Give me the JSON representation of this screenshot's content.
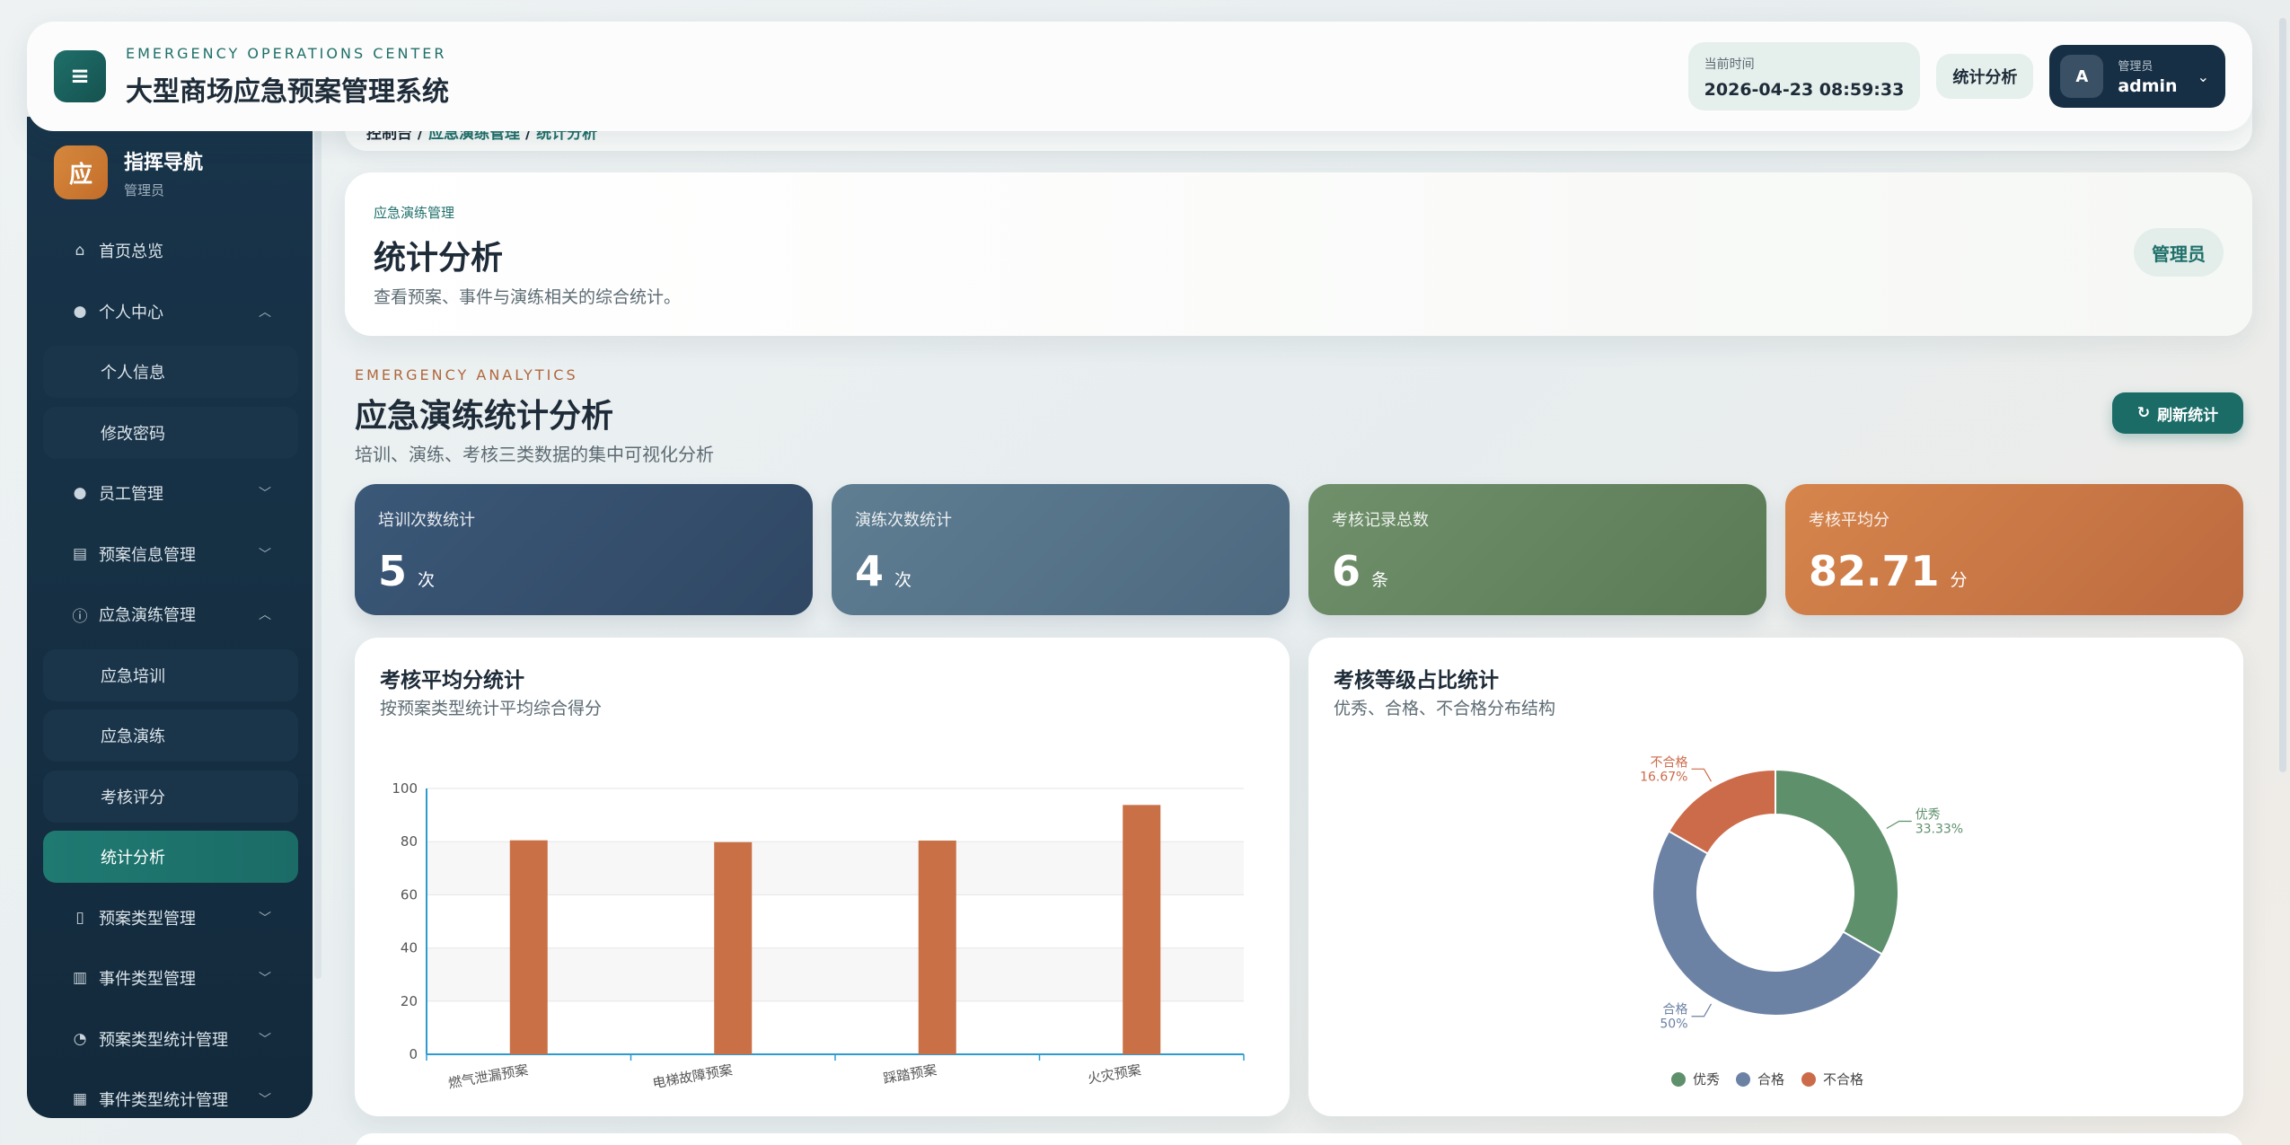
{
  "header": {
    "subtitle": "EMERGENCY OPERATIONS CENTER",
    "title": "大型商场应急预案管理系统",
    "time_label": "当前时间",
    "time_value": "2026-04-23 08:59:33",
    "chip": "统计分析",
    "user_role": "管理员",
    "user_name": "admin",
    "avatar_letter": "A"
  },
  "sidebar": {
    "logo_char": "应",
    "title": "指挥导航",
    "role": "管理员",
    "items": [
      {
        "label": "首页总览",
        "icon": "home-icon",
        "type": "top"
      },
      {
        "label": "个人中心",
        "icon": "user-icon",
        "type": "top",
        "expanded": true
      },
      {
        "label": "个人信息",
        "type": "sub"
      },
      {
        "label": "修改密码",
        "type": "sub"
      },
      {
        "label": "员工管理",
        "icon": "user-icon",
        "type": "top"
      },
      {
        "label": "预案信息管理",
        "icon": "document-icon",
        "type": "top"
      },
      {
        "label": "应急演练管理",
        "icon": "alert-icon",
        "type": "top",
        "expanded": true
      },
      {
        "label": "应急培训",
        "type": "sub"
      },
      {
        "label": "应急演练",
        "type": "sub"
      },
      {
        "label": "考核评分",
        "type": "sub"
      },
      {
        "label": "统计分析",
        "type": "sub",
        "active": true
      },
      {
        "label": "预案类型管理",
        "icon": "bookmark-icon",
        "type": "top"
      },
      {
        "label": "事件类型管理",
        "icon": "book-icon",
        "type": "top"
      },
      {
        "label": "预案类型统计管理",
        "icon": "pie-icon",
        "type": "top"
      },
      {
        "label": "事件类型统计管理",
        "icon": "chart-icon",
        "type": "top"
      }
    ]
  },
  "breadcrumb": {
    "a": "控制台",
    "sep": "/",
    "b": "应急演练管理",
    "c": "统计分析"
  },
  "page": {
    "sub": "应急演练管理",
    "title": "统计分析",
    "desc": "查看预案、事件与演练相关的综合统计。",
    "badge": "管理员"
  },
  "section": {
    "sub": "EMERGENCY ANALYTICS",
    "title": "应急演练统计分析",
    "desc": "培训、演练、考核三类数据的集中可视化分析",
    "refresh": "刷新统计"
  },
  "stats": [
    {
      "label": "培训次数统计",
      "value": "5",
      "unit": "次"
    },
    {
      "label": "演练次数统计",
      "value": "4",
      "unit": "次"
    },
    {
      "label": "考核记录总数",
      "value": "6",
      "unit": "条"
    },
    {
      "label": "考核平均分",
      "value": "82.71",
      "unit": "分"
    }
  ],
  "bar_card": {
    "title": "考核平均分统计",
    "desc": "按预案类型统计平均综合得分"
  },
  "pie_card": {
    "title": "考核等级占比统计",
    "desc": "优秀、合格、不合格分布结构"
  },
  "colors": {
    "bar": "#c97046",
    "excellent": "#5e906b",
    "pass": "#6c82a4",
    "fail": "#cc6b4a"
  },
  "chart_data": [
    {
      "type": "bar",
      "categories": [
        "燃气泄漏预案",
        "电梯故障预案",
        "踩踏预案",
        "火灾预案"
      ],
      "values": [
        80.5,
        79.8,
        80.4,
        93.8
      ],
      "ylim": [
        0,
        100
      ],
      "yticks": [
        0,
        20,
        40,
        60,
        80,
        100
      ]
    },
    {
      "type": "pie",
      "labels": [
        "优秀",
        "合格",
        "不合格"
      ],
      "values": [
        33.33,
        50,
        16.67
      ],
      "value_labels": [
        "33.33%",
        "50%",
        "16.67%"
      ],
      "legend": "bottom"
    }
  ]
}
